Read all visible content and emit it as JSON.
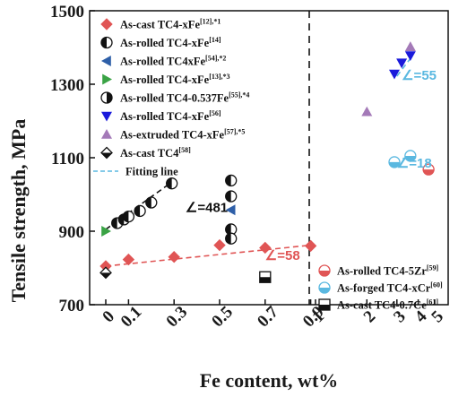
{
  "chart_data": {
    "type": "scatter",
    "xlabel": "Fe content, wt%",
    "ylabel": "Tensile strength, MPa",
    "ylim": [
      700,
      1500
    ],
    "yticks": [
      "700",
      "900",
      "1100",
      "1300",
      "1500"
    ],
    "xticks_left": [
      "0",
      "0.1",
      "0.3",
      "0.5",
      "0.7",
      "0.9"
    ],
    "xticks_right": [
      "1",
      "2",
      "3",
      "4",
      "5"
    ],
    "right_panel_xlabel": "",
    "series": [
      {
        "key": "s1",
        "name": "As-cast TC4-xFe",
        "ref": "[12],*1",
        "marker": "diamond",
        "color": "#e05555",
        "points": [
          [
            0.0,
            805
          ],
          [
            0.1,
            823
          ],
          [
            0.3,
            830
          ],
          [
            0.5,
            862
          ],
          [
            0.7,
            855
          ],
          [
            0.9,
            860
          ]
        ]
      },
      {
        "key": "s2",
        "name": "As-rolled TC4-xFe",
        "ref": "[14]",
        "marker": "halfcircle",
        "color": "#111111",
        "points": [
          [
            0.05,
            922
          ],
          [
            0.08,
            932
          ],
          [
            0.1,
            940
          ],
          [
            0.15,
            955
          ],
          [
            0.2,
            978
          ],
          [
            0.29,
            1030
          ],
          [
            0.55,
            1038
          ],
          [
            0.55,
            995
          ],
          [
            0.55,
            905
          ],
          [
            0.55,
            880
          ]
        ]
      },
      {
        "key": "s3",
        "name": "As-rolled TC4xFe",
        "ref": "[54],*2",
        "marker": "triangle-left",
        "color": "#2e5fa8",
        "points": [
          [
            0.55,
            958
          ]
        ]
      },
      {
        "key": "s4",
        "name": "As-rolled TC4-xFe",
        "ref": "[13],*3",
        "marker": "triangle-right",
        "color": "#3aa345",
        "points": [
          [
            0.0,
            900
          ]
        ]
      },
      {
        "key": "s5",
        "name": "As-rolled TC4-0.537Fe",
        "ref": "[55],*4",
        "marker": "halfcircle-v",
        "color": "#111111",
        "points": []
      },
      {
        "key": "s6",
        "name": "As-rolled TC4-xFe",
        "ref": "[56]",
        "marker": "triangle-down",
        "color": "#1a1adb",
        "points": [
          [
            2.9,
            1328
          ],
          [
            3.2,
            1358
          ],
          [
            3.6,
            1378
          ]
        ]
      },
      {
        "key": "s7",
        "name": "As-extruded TC4-xFe",
        "ref": "[57],*5",
        "marker": "triangle-up",
        "color": "#a47ab8",
        "points": [
          [
            2.0,
            1225
          ],
          [
            3.6,
            1402
          ]
        ]
      },
      {
        "key": "s8",
        "name": "As-cast TC4",
        "ref": "[58]",
        "marker": "diamond-half",
        "color": "#111111",
        "points": [
          [
            0.0,
            787
          ]
        ]
      },
      {
        "key": "s9",
        "name": "As-rolled TC4-5Zr",
        "ref": "[59]",
        "marker": "circle-half",
        "color": "#e05555",
        "points": [
          [
            4.6,
            1068
          ]
        ]
      },
      {
        "key": "s10",
        "name": "As-forged TC4-xCr",
        "ref": "[60]",
        "marker": "circle-half",
        "color": "#5ab8e0",
        "points": [
          [
            2.9,
            1088
          ],
          [
            3.6,
            1105
          ]
        ]
      },
      {
        "key": "s11",
        "name": "As-cast TC4-0.7Ce",
        "ref": "[61]",
        "marker": "square-half",
        "color": "#111111",
        "points": [
          [
            0.7,
            775
          ]
        ]
      }
    ],
    "fitting_line_label": "Fitting line",
    "annotations": [
      {
        "text": "∠=481",
        "color": "#111111",
        "at": [
          0.35,
          952
        ]
      },
      {
        "text": "∠=58",
        "color": "#e05555",
        "at": [
          0.7,
          822
        ]
      },
      {
        "text": "∠=55",
        "color": "#5ab8e0",
        "at": [
          3.2,
          1312
        ]
      },
      {
        "text": "∠=18",
        "color": "#5ab8e0",
        "at": [
          3.0,
          1073
        ]
      }
    ],
    "fit_lines": [
      {
        "color": "#111111",
        "from": [
          0.0,
          905
        ],
        "to": [
          0.3,
          1038
        ]
      },
      {
        "color": "#e05555",
        "from": [
          0.0,
          805
        ],
        "to": [
          0.9,
          862
        ]
      },
      {
        "color": "#5ab8e0",
        "from": [
          3.0,
          1322
        ],
        "to": [
          3.6,
          1370
        ]
      },
      {
        "color": "#5ab8e0",
        "from": [
          2.9,
          1088
        ],
        "to": [
          3.6,
          1105
        ]
      }
    ],
    "divider_at": "between 0.9 and 1"
  }
}
